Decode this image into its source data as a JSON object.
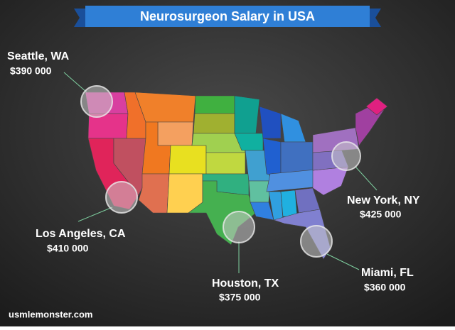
{
  "header": {
    "title": "Neurosurgeon Salary in USA"
  },
  "callouts": [
    {
      "city": "Seattle, WA",
      "salary": "$390 000"
    },
    {
      "city": "Los Angeles, CA",
      "salary": "$410 000"
    },
    {
      "city": "Houston, TX",
      "salary": "$375 000"
    },
    {
      "city": "New York, NY",
      "salary": "$425 000"
    },
    {
      "city": "Miami, FL",
      "salary": "$360 000"
    }
  ],
  "footer": {
    "source": "usmlemonster.com"
  }
}
